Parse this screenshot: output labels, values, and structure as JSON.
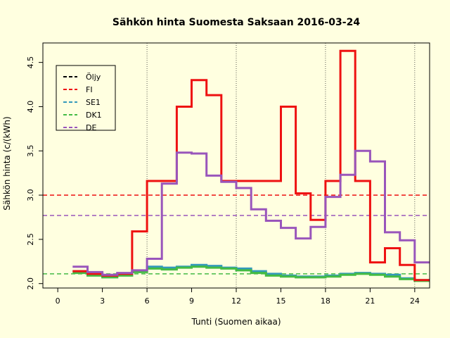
{
  "chart_data": {
    "type": "line",
    "title": "Sähkön hinta Suomesta Saksaan 2016-03-24",
    "xlabel": "Tunti (Suomen aikaa)",
    "ylabel": "Sähkön hinta (c/(kWh)",
    "xlim": [
      -1,
      25
    ],
    "ylim": [
      1.95,
      4.72
    ],
    "xticks": [
      0,
      3,
      6,
      9,
      12,
      15,
      18,
      21,
      24
    ],
    "xtick_labels": [
      "0",
      "3",
      "6",
      "9",
      "12",
      "15",
      "18",
      "21",
      "24"
    ],
    "yticks": [
      2.0,
      2.5,
      3.0,
      3.5,
      4.0,
      4.5
    ],
    "ytick_labels": [
      "2.0",
      "2.5",
      "3.0",
      "3.5",
      "4.0",
      "4.5"
    ],
    "vertical_gridlines": [
      6,
      12,
      18,
      24
    ],
    "step_x": [
      1,
      2,
      3,
      4,
      5,
      6,
      7,
      8,
      9,
      10,
      11,
      12,
      13,
      14,
      15,
      16,
      17,
      18,
      19,
      20,
      21,
      22,
      23,
      24,
      25
    ],
    "legend_position": "top-left",
    "series": [
      {
        "name": "Öljy",
        "color": "#000000",
        "values": [],
        "average": null
      },
      {
        "name": "FI",
        "color": "#EE1111",
        "average": 3.0,
        "values": [
          2.14,
          2.11,
          2.09,
          2.11,
          2.59,
          3.16,
          3.16,
          4.0,
          4.3,
          4.13,
          3.16,
          3.16,
          3.16,
          3.16,
          4.0,
          3.02,
          2.72,
          3.16,
          4.63,
          3.16,
          2.24,
          2.4,
          2.21,
          2.04
        ]
      },
      {
        "name": "SE1",
        "color": "#3399BB",
        "average": null,
        "values": [
          2.14,
          2.11,
          2.09,
          2.11,
          2.14,
          2.19,
          2.18,
          2.19,
          2.21,
          2.2,
          2.18,
          2.17,
          2.14,
          2.11,
          2.09,
          2.08,
          2.08,
          2.09,
          2.11,
          2.12,
          2.11,
          2.1,
          2.06,
          2.04
        ]
      },
      {
        "name": "DK1",
        "color": "#44BB44",
        "average": 2.11,
        "values": [
          2.12,
          2.09,
          2.07,
          2.09,
          2.13,
          2.17,
          2.16,
          2.18,
          2.19,
          2.18,
          2.17,
          2.15,
          2.12,
          2.09,
          2.08,
          2.07,
          2.07,
          2.08,
          2.1,
          2.11,
          2.1,
          2.08,
          2.05,
          2.03
        ]
      },
      {
        "name": "DE",
        "color": "#9955BB",
        "average": 2.77,
        "values": [
          2.19,
          2.13,
          2.1,
          2.12,
          2.15,
          2.28,
          3.13,
          3.48,
          3.47,
          3.22,
          3.15,
          3.08,
          2.84,
          2.71,
          2.63,
          2.51,
          2.64,
          2.98,
          3.23,
          3.5,
          3.38,
          2.58,
          2.49,
          2.24
        ]
      }
    ]
  }
}
